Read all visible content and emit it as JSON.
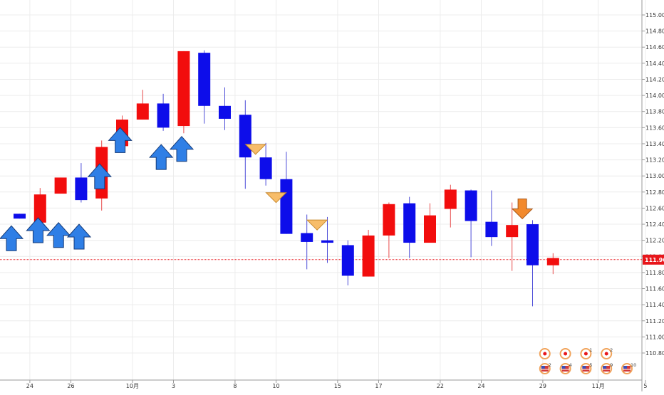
{
  "chart_data": {
    "type": "candlestick",
    "y_axis": {
      "ticks": [
        "115.000",
        "114.800",
        "114.600",
        "114.400",
        "114.200",
        "114.000",
        "113.800",
        "113.600",
        "113.400",
        "113.200",
        "113.000",
        "112.800",
        "112.600",
        "112.400",
        "112.200",
        "112.000",
        "111.800",
        "111.600",
        "111.400",
        "111.200",
        "111.000",
        "110.800"
      ],
      "range": [
        110.75,
        115.1
      ],
      "placement": "right"
    },
    "x_axis": {
      "labels": [
        {
          "text": "24",
          "slot": 0.5
        },
        {
          "text": "26",
          "slot": 2.5
        },
        {
          "text": "10月",
          "slot": 5.5
        },
        {
          "text": "3",
          "slot": 7.5
        },
        {
          "text": "8",
          "slot": 10.5
        },
        {
          "text": "10",
          "slot": 12.5
        },
        {
          "text": "15",
          "slot": 15.5
        },
        {
          "text": "17",
          "slot": 17.5
        },
        {
          "text": "22",
          "slot": 20.5
        },
        {
          "text": "24",
          "slot": 22.5
        },
        {
          "text": "29",
          "slot": 25.5
        },
        {
          "text": "11月",
          "slot": 28.2
        },
        {
          "text": "5",
          "slot": 30.5
        }
      ]
    },
    "current_price": {
      "value": 111.96,
      "label": "111.960",
      "color": "#e8161b"
    },
    "colors": {
      "up": "#f20d0d",
      "down": "#0d0dea",
      "wick_up": "#e84d4d",
      "wick_down": "#4d4dd8",
      "grid": "#ececec"
    },
    "candles": [
      {
        "o": 112.53,
        "h": 112.53,
        "l": 112.47,
        "c": 112.47
      },
      {
        "o": 112.42,
        "h": 112.85,
        "l": 112.4,
        "c": 112.77
      },
      {
        "o": 112.78,
        "h": 112.98,
        "l": 112.78,
        "c": 112.98
      },
      {
        "o": 112.98,
        "h": 113.16,
        "l": 112.67,
        "c": 112.7
      },
      {
        "o": 112.72,
        "h": 113.44,
        "l": 112.57,
        "c": 113.36
      },
      {
        "o": 113.37,
        "h": 113.75,
        "l": 113.37,
        "c": 113.7
      },
      {
        "o": 113.7,
        "h": 114.07,
        "l": 113.7,
        "c": 113.9
      },
      {
        "o": 113.9,
        "h": 114.02,
        "l": 113.56,
        "c": 113.6
      },
      {
        "o": 113.62,
        "h": 114.55,
        "l": 113.53,
        "c": 114.55
      },
      {
        "o": 114.53,
        "h": 114.56,
        "l": 113.65,
        "c": 113.87
      },
      {
        "o": 113.87,
        "h": 114.1,
        "l": 113.57,
        "c": 113.71
      },
      {
        "o": 113.76,
        "h": 113.94,
        "l": 112.84,
        "c": 113.23
      },
      {
        "o": 113.23,
        "h": 113.41,
        "l": 112.88,
        "c": 112.96
      },
      {
        "o": 112.96,
        "h": 113.3,
        "l": 112.28,
        "c": 112.28
      },
      {
        "o": 112.29,
        "h": 112.52,
        "l": 111.84,
        "c": 112.18
      },
      {
        "o": 112.2,
        "h": 112.49,
        "l": 111.92,
        "c": 112.17
      },
      {
        "o": 112.14,
        "h": 112.2,
        "l": 111.64,
        "c": 111.76
      },
      {
        "o": 111.75,
        "h": 112.33,
        "l": 111.75,
        "c": 112.26
      },
      {
        "o": 112.26,
        "h": 112.67,
        "l": 111.98,
        "c": 112.65
      },
      {
        "o": 112.66,
        "h": 112.74,
        "l": 111.98,
        "c": 112.17
      },
      {
        "o": 112.17,
        "h": 112.66,
        "l": 112.17,
        "c": 112.51
      },
      {
        "o": 112.59,
        "h": 112.89,
        "l": 112.36,
        "c": 112.83
      },
      {
        "o": 112.82,
        "h": 112.83,
        "l": 111.99,
        "c": 112.44
      },
      {
        "o": 112.43,
        "h": 112.82,
        "l": 112.13,
        "c": 112.24
      },
      {
        "o": 112.24,
        "h": 112.67,
        "l": 111.82,
        "c": 112.39
      },
      {
        "o": 112.4,
        "h": 112.45,
        "l": 111.38,
        "c": 111.89
      },
      {
        "o": 111.89,
        "h": 112.04,
        "l": 111.78,
        "c": 111.98
      }
    ],
    "buy_arrows": [
      {
        "slot": -0.4,
        "tip": 112.38
      },
      {
        "slot": 0.9,
        "tip": 112.48
      },
      {
        "slot": 1.9,
        "tip": 112.42
      },
      {
        "slot": 2.9,
        "tip": 112.4
      },
      {
        "slot": 3.9,
        "tip": 113.15
      },
      {
        "slot": 4.9,
        "tip": 113.6
      },
      {
        "slot": 6.9,
        "tip": 113.39
      },
      {
        "slot": 7.9,
        "tip": 113.49
      }
    ],
    "sell_markers": [
      {
        "slot": 11.5,
        "price": 113.33,
        "style": "triangle"
      },
      {
        "slot": 12.5,
        "price": 112.73,
        "style": "triangle"
      },
      {
        "slot": 14.5,
        "price": 112.39,
        "style": "triangle"
      },
      {
        "slot": 24.5,
        "price": 112.52,
        "style": "arrow"
      }
    ],
    "event_icons": [
      {
        "slot": 25.6,
        "row": 1,
        "kind": "jp",
        "count": ""
      },
      {
        "slot": 25.6,
        "row": 2,
        "kind": "us",
        "count": "2"
      },
      {
        "slot": 26.6,
        "row": 1,
        "kind": "jp",
        "count": ""
      },
      {
        "slot": 26.6,
        "row": 2,
        "kind": "us",
        "count": "4"
      },
      {
        "slot": 27.6,
        "row": 1,
        "kind": "jp",
        "count": "1"
      },
      {
        "slot": 27.6,
        "row": 2,
        "kind": "us",
        "count": "5"
      },
      {
        "slot": 28.6,
        "row": 1,
        "kind": "jp",
        "count": "2"
      },
      {
        "slot": 28.6,
        "row": 2,
        "kind": "us",
        "count": "9"
      },
      {
        "slot": 29.6,
        "row": 2,
        "kind": "us",
        "count": "10"
      }
    ]
  }
}
